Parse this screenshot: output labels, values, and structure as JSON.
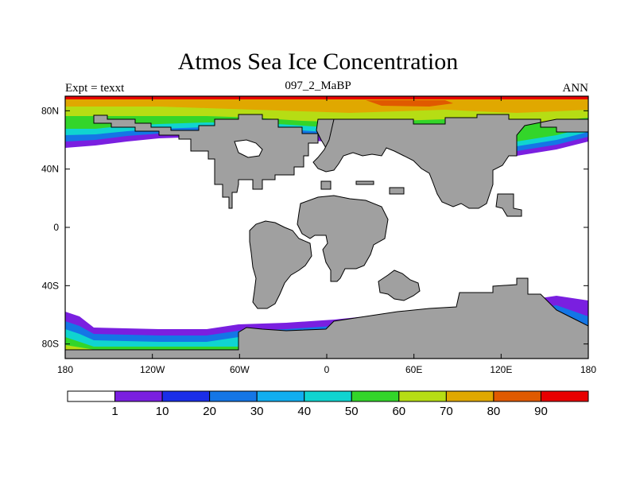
{
  "title": "Atmos Sea Ice Concentration",
  "subtitle": "097_2_MaBP",
  "left_label": "Expt = texxt",
  "right_label": "ANN",
  "map": {
    "lat_ticks": [
      {
        "value": 80,
        "label": "80N"
      },
      {
        "value": 40,
        "label": "40N"
      },
      {
        "value": 0,
        "label": "0"
      },
      {
        "value": -40,
        "label": "40S"
      },
      {
        "value": -80,
        "label": "80S"
      }
    ],
    "lon_ticks": [
      {
        "value": -180,
        "label": "180"
      },
      {
        "value": -120,
        "label": "120W"
      },
      {
        "value": -60,
        "label": "60W"
      },
      {
        "value": 0,
        "label": "0"
      },
      {
        "value": 60,
        "label": "60E"
      },
      {
        "value": 120,
        "label": "120E"
      },
      {
        "value": 180,
        "label": "180"
      }
    ],
    "land_color": "#a0a0a0",
    "ocean_color": "#ffffff"
  },
  "colorbar": {
    "colors": [
      "#ffffff",
      "#7a1fe0",
      "#1a2ee8",
      "#1476e6",
      "#12aef0",
      "#10d4d0",
      "#33d52a",
      "#b6dd14",
      "#e0a800",
      "#e05a00",
      "#e80000"
    ],
    "levels": [
      1,
      10,
      20,
      30,
      40,
      50,
      60,
      70,
      80,
      90
    ],
    "labels": [
      "1",
      "10",
      "20",
      "30",
      "40",
      "50",
      "60",
      "70",
      "80",
      "90"
    ]
  }
}
